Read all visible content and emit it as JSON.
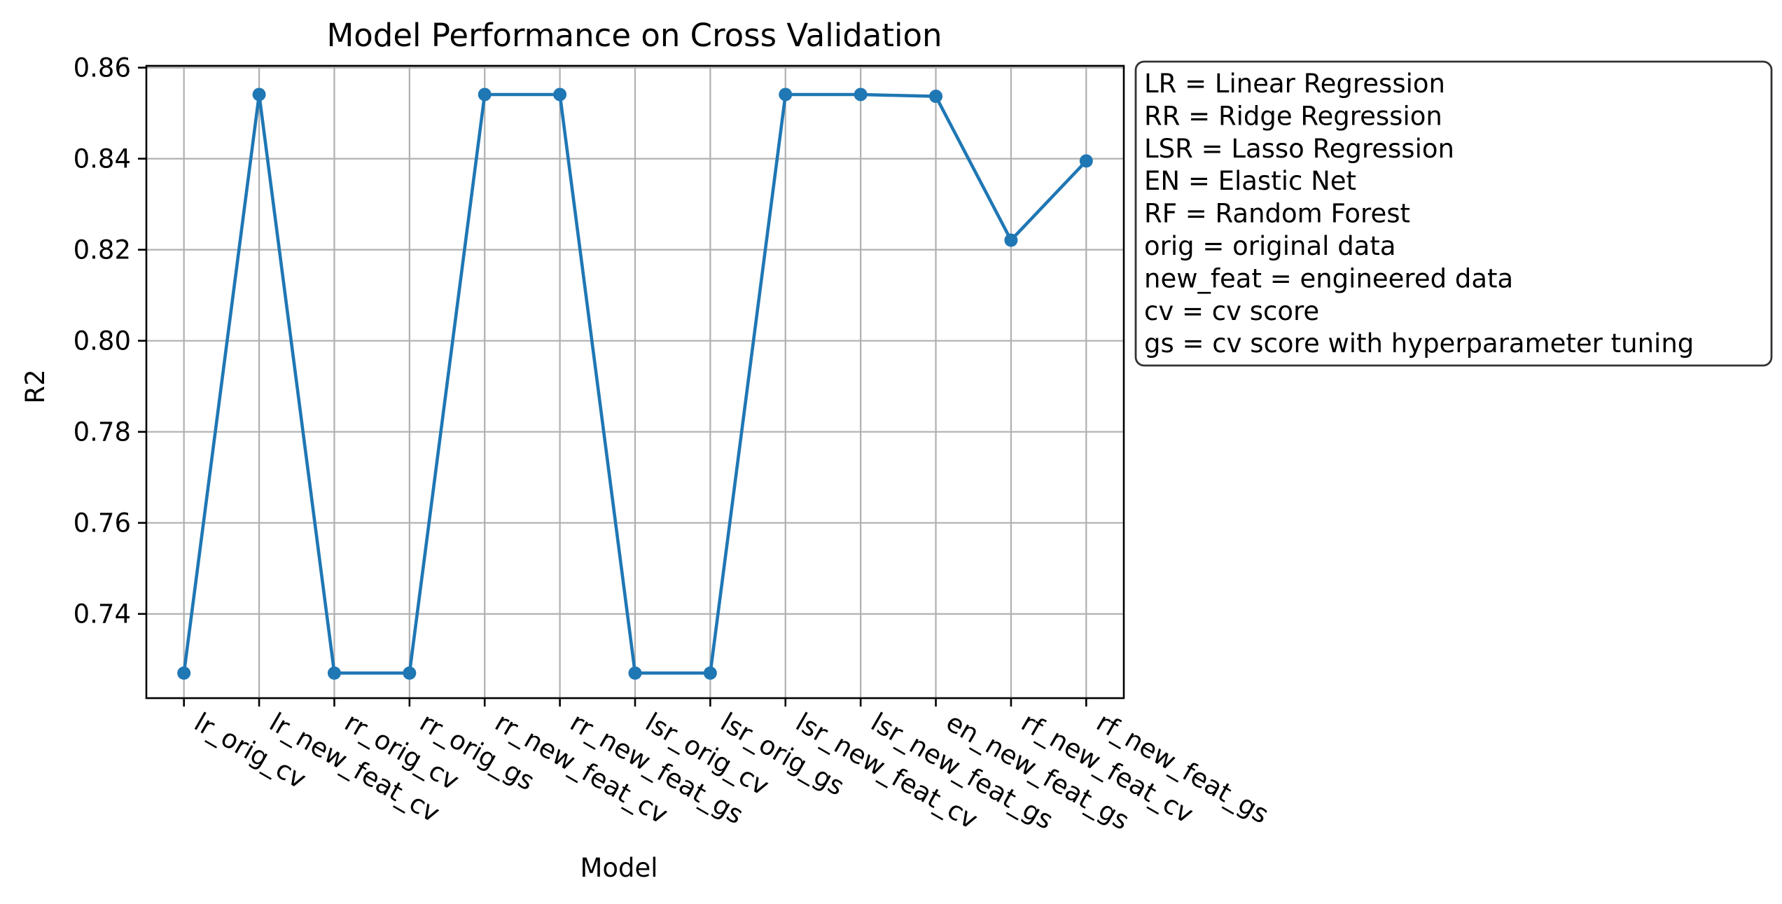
{
  "chart_data": {
    "type": "line",
    "title": "Model Performance on Cross Validation",
    "xlabel": "Model",
    "ylabel": "R2",
    "categories": [
      "lr_orig_cv",
      "lr_new_feat_cv",
      "rr_orig_cv",
      "rr_orig_gs",
      "rr_new_feat_cv",
      "rr_new_feat_gs",
      "lsr_orig_cv",
      "lsr_orig_gs",
      "lsr_new_feat_cv",
      "lsr_new_feat_gs",
      "en_new_feat_gs",
      "rf_new_feat_cv",
      "rf_new_feat_gs"
    ],
    "series": [
      {
        "values": [
          0.727,
          0.8541,
          0.727,
          0.727,
          0.8541,
          0.8541,
          0.727,
          0.727,
          0.8541,
          0.8541,
          0.8537,
          0.8221,
          0.8395
        ],
        "color": "#1f77b4"
      }
    ],
    "ylim": [
      0.7215,
      0.8604
    ],
    "yticks": [
      "0.74",
      "0.76",
      "0.78",
      "0.80",
      "0.82",
      "0.84",
      "0.86"
    ],
    "grid": true,
    "legend_placement": "outside right, top"
  },
  "legend_text": [
    "LR = Linear Regression",
    "RR = Ridge Regression",
    "LSR = Lasso Regression",
    "EN = Elastic Net",
    "RF = Random Forest",
    "orig = original data",
    "new_feat = engineered data",
    "cv = cv score",
    "gs = cv score with hyperparameter tuning"
  ]
}
